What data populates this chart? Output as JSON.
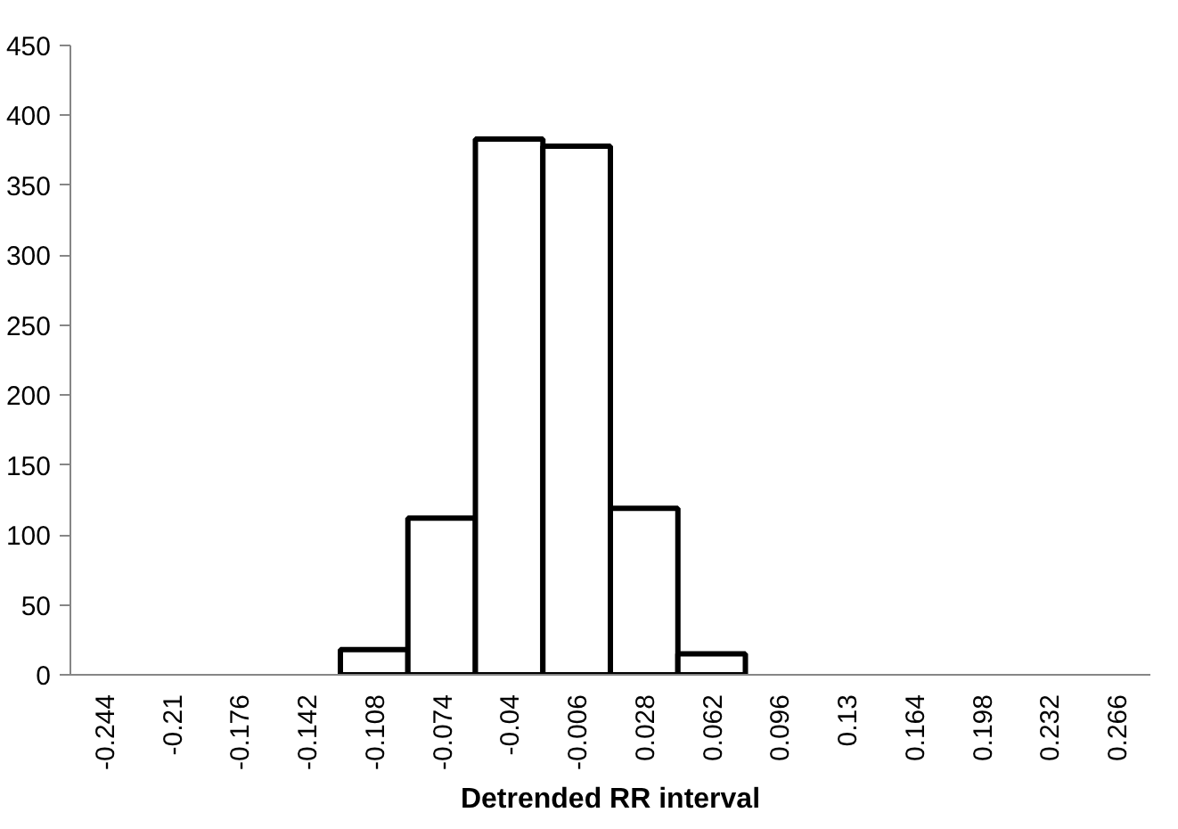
{
  "chart_data": {
    "type": "bar",
    "xlabel": "Detrended RR interval",
    "categories": [
      "-0.244",
      "-0.21",
      "-0.176",
      "-0.142",
      "-0.108",
      "-0.074",
      "-0.04",
      "-0.006",
      "0.028",
      "0.062",
      "0.096",
      "0.13",
      "0.164",
      "0.198",
      "0.232",
      "0.266"
    ],
    "values": [
      0,
      0,
      0,
      0,
      18,
      112,
      383,
      378,
      119,
      15,
      0,
      0,
      0,
      0,
      0,
      0
    ],
    "color": "#ffffff",
    "ylim": [
      0,
      450
    ],
    "yticks": [
      0,
      50,
      100,
      150,
      200,
      250,
      300,
      350,
      400,
      450
    ],
    "grid": false
  }
}
